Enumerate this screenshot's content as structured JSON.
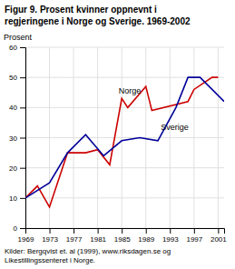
{
  "chart_data": {
    "type": "line",
    "title": "Figur 9. Prosent kvinner oppnevnt i\nregjeringene i Norge og Sverige. 1969-2002",
    "y_label": "Prosent",
    "source": "Kilder: Bergqvist et. al (1999), www.riksdagen.se og\nLikestillingssenteret i Norge.",
    "series": [
      {
        "color": "#cc0000",
        "x": [
          1969,
          1971,
          1973,
          1976,
          1979,
          1981,
          1983,
          1985,
          1986,
          1989,
          1990,
          1996,
          1997,
          2000,
          2001
        ],
        "values": [
          10,
          14,
          7,
          25,
          25,
          26,
          21,
          43,
          40,
          47,
          39,
          42,
          46,
          50,
          50
        ]
      },
      {
        "color": "#000099",
        "x": [
          1969,
          1973,
          1976,
          1979,
          1982,
          1985,
          1988,
          1991,
          1994,
          1996,
          1998,
          2002
        ],
        "values": [
          10,
          15,
          25,
          31,
          24,
          29,
          30,
          29,
          40,
          50,
          50,
          42
        ]
      }
    ],
    "annotations": [
      {
        "text": "Norge",
        "x": 1984.5,
        "y": 44
      },
      {
        "text": "Sverige",
        "x": 1991.5,
        "y": 32
      }
    ],
    "xlim": [
      1969,
      2002
    ],
    "ylim": [
      0,
      60
    ],
    "xticks": [
      1969,
      1973,
      1977,
      1981,
      1985,
      1989,
      1993,
      1997,
      2001
    ],
    "yticks": [
      0,
      10,
      20,
      30,
      40,
      50,
      60
    ],
    "grid": true
  }
}
